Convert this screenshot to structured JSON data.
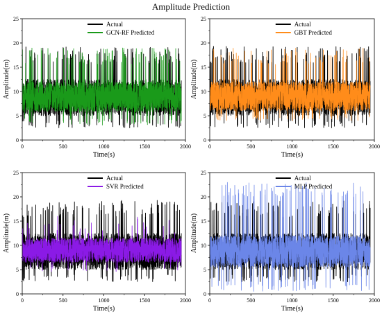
{
  "figure": {
    "title": "Amplitude Prediction"
  },
  "chart_data": [
    {
      "type": "line",
      "xlabel": "Time(s)",
      "ylabel": "Amplitude(m)",
      "xlim": [
        0,
        2000
      ],
      "ylim": [
        0,
        25
      ],
      "xticks": [
        0,
        500,
        1000,
        1500,
        2000
      ],
      "yticks": [
        0,
        5,
        10,
        15,
        20,
        25
      ],
      "grid": false,
      "legend_position": "top-center",
      "series": [
        {
          "name": "Actual",
          "color": "#000000",
          "n": 1950,
          "band": [
            5,
            12.5
          ],
          "range": [
            2.5,
            19.3
          ],
          "spike_rate": 0.07
        },
        {
          "name": "GCN-RF Predicted",
          "color": "#1a9a1a",
          "n": 1950,
          "band": [
            5.8,
            12
          ],
          "range": [
            3,
            19
          ],
          "spike_rate": 0.06
        }
      ]
    },
    {
      "type": "line",
      "xlabel": "Time(s)",
      "ylabel": "Amplitude(m)",
      "xlim": [
        0,
        2000
      ],
      "ylim": [
        0,
        25
      ],
      "xticks": [
        0,
        500,
        1000,
        1500,
        2000
      ],
      "yticks": [
        0,
        5,
        10,
        15,
        20,
        25
      ],
      "grid": false,
      "legend_position": "top-center",
      "series": [
        {
          "name": "Actual",
          "color": "#000000",
          "n": 1950,
          "band": [
            5,
            12.5
          ],
          "range": [
            2.5,
            19.3
          ],
          "spike_rate": 0.07
        },
        {
          "name": "GBT Predicted",
          "color": "#ff8c1a",
          "n": 1950,
          "band": [
            6,
            12
          ],
          "range": [
            4,
            19
          ],
          "spike_rate": 0.06
        }
      ]
    },
    {
      "type": "line",
      "xlabel": "Time(s)",
      "ylabel": "Amplitude(m)",
      "xlim": [
        0,
        2000
      ],
      "ylim": [
        0,
        25
      ],
      "xticks": [
        0,
        500,
        1000,
        1500,
        2000
      ],
      "yticks": [
        0,
        5,
        10,
        15,
        20,
        25
      ],
      "grid": false,
      "legend_position": "top-center",
      "series": [
        {
          "name": "Actual",
          "color": "#000000",
          "n": 1950,
          "band": [
            5,
            12.5
          ],
          "range": [
            2.5,
            19.3
          ],
          "spike_rate": 0.07
        },
        {
          "name": "SVR Predicted",
          "color": "#8b1ae6",
          "n": 1950,
          "band": [
            6.5,
            11.5
          ],
          "range": [
            4.5,
            16
          ],
          "spike_rate": 0.02
        }
      ]
    },
    {
      "type": "line",
      "xlabel": "Time(s)",
      "ylabel": "Amplitude(m)",
      "xlim": [
        0,
        2000
      ],
      "ylim": [
        0,
        25
      ],
      "xticks": [
        0,
        500,
        1000,
        1500,
        2000
      ],
      "yticks": [
        0,
        5,
        10,
        15,
        20,
        25
      ],
      "grid": false,
      "legend_position": "top-center",
      "series": [
        {
          "name": "Actual",
          "color": "#000000",
          "n": 1950,
          "band": [
            5,
            12.5
          ],
          "range": [
            2.5,
            19.3
          ],
          "spike_rate": 0.07
        },
        {
          "name": "MLP Predicted",
          "color": "#6b86e8",
          "n": 1950,
          "band": [
            5.5,
            12
          ],
          "range": [
            0.5,
            23
          ],
          "spike_rate": 0.06
        }
      ]
    }
  ]
}
